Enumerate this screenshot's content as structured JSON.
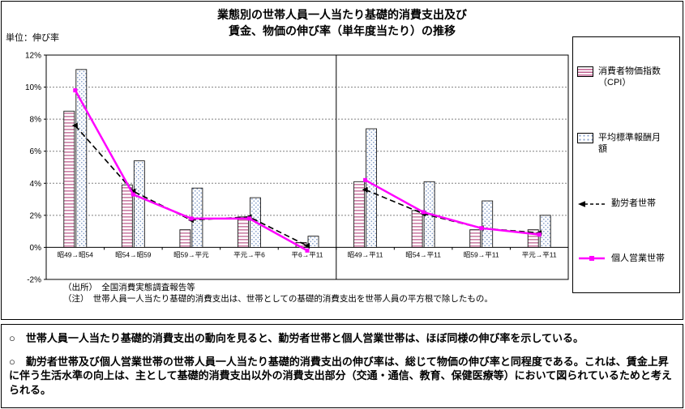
{
  "header": {
    "title_line1": "業態別の世帯人員一人当たり基礎的消費支出及び",
    "title_line2": "賃金、物価の伸び率（単年度当たり）の推移",
    "unit_label": "単位：伸び率"
  },
  "chart_data": {
    "type": "bar",
    "subtype": "grouped bars with two overlay line series",
    "categories": [
      "昭49→昭54",
      "昭54→昭59",
      "昭59→平元",
      "平元→平6",
      "平6→平11",
      "昭49→平11",
      "昭54→平11",
      "昭59→平11",
      "平元→平11"
    ],
    "group_separator_after_index": 4,
    "ylim": [
      -2,
      12
    ],
    "ytick_step": 2,
    "ytick_suffix": "%",
    "grid": true,
    "legend_position": "right",
    "bar_series": [
      {
        "name": "消費者物価指数（CPI）",
        "pattern": "horizontal-stripes",
        "color": "#c06090",
        "values": [
          8.5,
          3.9,
          1.1,
          1.9,
          0.3,
          4.1,
          2.3,
          1.1,
          1.1
        ]
      },
      {
        "name": "平均標準報酬月額",
        "pattern": "dots",
        "color": "#8aa2cc",
        "values": [
          11.1,
          5.4,
          3.7,
          3.1,
          0.7,
          7.4,
          4.1,
          2.9,
          2.0
        ]
      }
    ],
    "line_series": [
      {
        "name": "勤労者世帯",
        "color": "#000000",
        "dashed": true,
        "marker": "arrow",
        "values": [
          7.6,
          3.5,
          1.7,
          1.9,
          0.1,
          3.6,
          2.1,
          1.2,
          0.9
        ]
      },
      {
        "name": "個人営業世帯",
        "color": "#ff00ff",
        "dashed": false,
        "marker": "square",
        "values": [
          9.8,
          3.3,
          1.8,
          1.8,
          -0.2,
          4.2,
          2.2,
          1.2,
          0.8
        ]
      }
    ]
  },
  "legend": {
    "items": [
      {
        "label": "消費者物価指数（CPI）",
        "swatch": "bar-horizontal-stripes"
      },
      {
        "label": "平均標準報酬月額",
        "swatch": "bar-dots"
      },
      {
        "label": "勤労者世帯",
        "swatch": "dashed-black-line-arrow"
      },
      {
        "label": "個人営業世帯",
        "swatch": "magenta-line-square-marker"
      }
    ]
  },
  "notes": {
    "source": "（出所）　全国消費実態調査報告等",
    "definition": "（注）　世帯人員一人当たり基礎的消費支出は、世帯としての基礎的消費支出を世帯人員の平方根で除したもの。"
  },
  "summary": {
    "bullets": [
      "○　世帯人員一人当たり基礎的消費支出の動向を見ると、勤労者世帯と個人営業世帯は、ほぼ同様の伸び率を示している。",
      "○　勤労者世帯及び個人営業世帯の世帯人員一人当たり基礎的消費支出の伸び率は、総じて物価の伸び率と同程度である。これは、賃金上昇に伴う生活水準の向上は、主として基礎的消費支出以外の消費支出部分（交通・通信、教育、保健医療等）において図られているためと考えられる。"
    ]
  }
}
